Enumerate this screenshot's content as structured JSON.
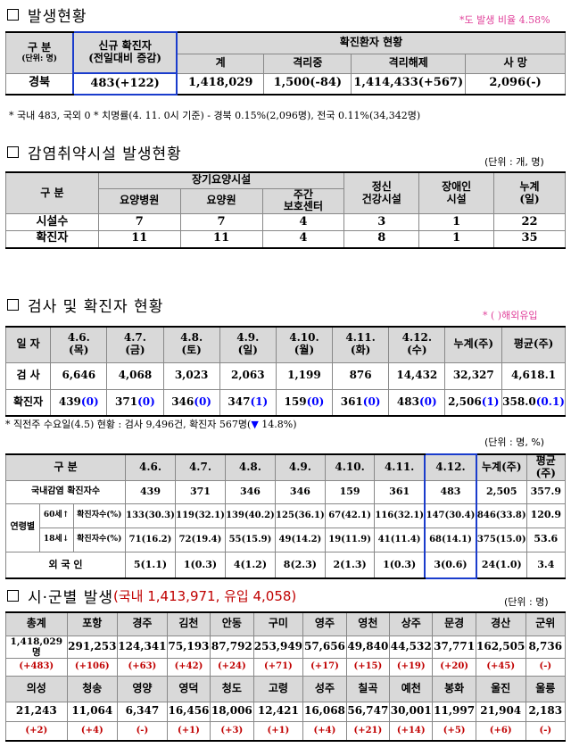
{
  "s1": {
    "title": "발생현황",
    "note_right": "*도 발생 비율 4.58%",
    "hdr_gubun": "구 분",
    "hdr_unit": "(단위: 명)",
    "hdr_new1": "신규 확진자",
    "hdr_new2": "(전일대비 증감)",
    "hdr_status": "확진환자 현황",
    "hdr_total": "계",
    "hdr_iso": "격리중",
    "hdr_release": "격리해제",
    "hdr_death": "사 망",
    "row_region": "경북",
    "row_new": "483(+122)",
    "row_total": "1,418,029",
    "row_iso": "1,500(-84)",
    "row_release": "1,414,433(+567)",
    "row_death": "2,096(-)",
    "footnote": "* 국내 483, 국외 0  * 치명률(4. 11. 0시 기준) - 경북 0.15%(2,096명), 전국 0.11%(34,342명)"
  },
  "s2": {
    "title": "감염취약시설 발생현황",
    "unit": "(단위 : 개, 명)",
    "hdr_gubun": "구 분",
    "hdr_longterm": "장기요양시설",
    "hdr_hosp": "요양병원",
    "hdr_home": "요양원",
    "hdr_day1": "주간",
    "hdr_day2": "보호센터",
    "hdr_mental1": "정신",
    "hdr_mental2": "건강시설",
    "hdr_disab1": "장애인",
    "hdr_disab2": "시설",
    "hdr_cum1": "누계",
    "hdr_cum2": "(일)",
    "rows": [
      {
        "label": "시설수",
        "v": [
          "7",
          "7",
          "4",
          "3",
          "1",
          "22"
        ]
      },
      {
        "label": "확진자",
        "v": [
          "11",
          "11",
          "4",
          "8",
          "1",
          "35"
        ]
      }
    ]
  },
  "s3": {
    "title": "검사 및 확진자 현황",
    "note_right": "* ( )해외유입",
    "hdr_date": "일 자",
    "dates": [
      [
        "4.6.",
        "(목)"
      ],
      [
        "4.7.",
        "(금)"
      ],
      [
        "4.8.",
        "(토)"
      ],
      [
        "4.9.",
        "(일)"
      ],
      [
        "4.10.",
        "(월)"
      ],
      [
        "4.11.",
        "(화)"
      ],
      [
        "4.12.",
        "(수)"
      ]
    ],
    "hdr_cum": "누계(주)",
    "hdr_avg": "평균(주)",
    "test_label": "검 사",
    "tests": [
      "6,646",
      "4,068",
      "3,023",
      "2,063",
      "1,199",
      "876",
      "14,432",
      "32,327",
      "4,618.1"
    ],
    "conf_label": "확진자",
    "conf": [
      [
        "439",
        "(0)"
      ],
      [
        "371",
        "(0)"
      ],
      [
        "346",
        "(0)"
      ],
      [
        "347",
        "(1)"
      ],
      [
        "159",
        "(0)"
      ],
      [
        "361",
        "(0)"
      ],
      [
        "483",
        "(0)"
      ],
      [
        "2,506",
        "(1)"
      ],
      [
        "358.0",
        "(0.1)"
      ]
    ],
    "footnote_a": "* 직전주 수요일(4.5) 현황 : 검사 9,496건, 확진자 567명(",
    "footnote_arrow": "▼",
    "footnote_b": " 14.8%)"
  },
  "s4": {
    "unit": "(단위 : 명, %)",
    "hdr_gubun": "구 분",
    "dates": [
      "4.6.",
      "4.7.",
      "4.8.",
      "4.9.",
      "4.10.",
      "4.11.",
      "4.12."
    ],
    "hdr_cum": "누계(주)",
    "hdr_avg": "평균(주)",
    "dom_label": "국내감염 확진자수",
    "dom": [
      "439",
      "371",
      "346",
      "346",
      "159",
      "361",
      "483",
      "2,505",
      "357.9"
    ],
    "age_label": "연령별",
    "over60_a": "60세↑",
    "over60_b": "확진자수(%)",
    "over60": [
      "133(30.3)",
      "119(32.1)",
      "139(40.2)",
      "125(36.1)",
      "67(42.1)",
      "116(32.1)",
      "147(30.4)",
      "846(33.8)",
      "120.9"
    ],
    "under18_a": "18세↓",
    "under18_b": "확진자수(%)",
    "under18": [
      "71(16.2)",
      "72(19.4)",
      "55(15.9)",
      "49(14.2)",
      "19(11.9)",
      "41(11.4)",
      "68(14.1)",
      "375(15.0)",
      "53.6"
    ],
    "foreign_label": "외 국 인",
    "foreign": [
      "5(1.1)",
      "1(0.3)",
      "4(1.2)",
      "8(2.3)",
      "2(1.3)",
      "1(0.3)",
      "3(0.6)",
      "24(1.0)",
      "3.4"
    ]
  },
  "s5": {
    "title_a": "시·군별 발생",
    "title_b": "(국내 1,413,971, 유입 4,058)",
    "unit": "(단위 : 명)",
    "row1_names": [
      "총계",
      "포항",
      "경주",
      "김천",
      "안동",
      "구미",
      "영주",
      "영천",
      "상주",
      "문경",
      "경산",
      "군위"
    ],
    "row1_vals": [
      "1,418,029명",
      "291,253",
      "124,341",
      "75,193",
      "87,792",
      "253,949",
      "57,656",
      "49,840",
      "44,532",
      "37,771",
      "162,505",
      "8,736"
    ],
    "row1_inc": [
      "(+483)",
      "(+106)",
      "(+63)",
      "(+42)",
      "(+24)",
      "(+71)",
      "(+17)",
      "(+15)",
      "(+19)",
      "(+20)",
      "(+45)",
      "(-)"
    ],
    "row2_names": [
      "의성",
      "청송",
      "영양",
      "영덕",
      "청도",
      "고령",
      "성주",
      "칠곡",
      "예천",
      "봉화",
      "울진",
      "울릉"
    ],
    "row2_vals": [
      "21,243",
      "11,064",
      "6,347",
      "16,456",
      "18,006",
      "12,421",
      "16,068",
      "56,747",
      "30,001",
      "11,997",
      "21,904",
      "2,183"
    ],
    "row2_inc": [
      "(+2)",
      "(+4)",
      "(-)",
      "(+1)",
      "(+3)",
      "(+1)",
      "(+4)",
      "(+21)",
      "(+14)",
      "(+5)",
      "(+6)",
      "(-)"
    ]
  }
}
